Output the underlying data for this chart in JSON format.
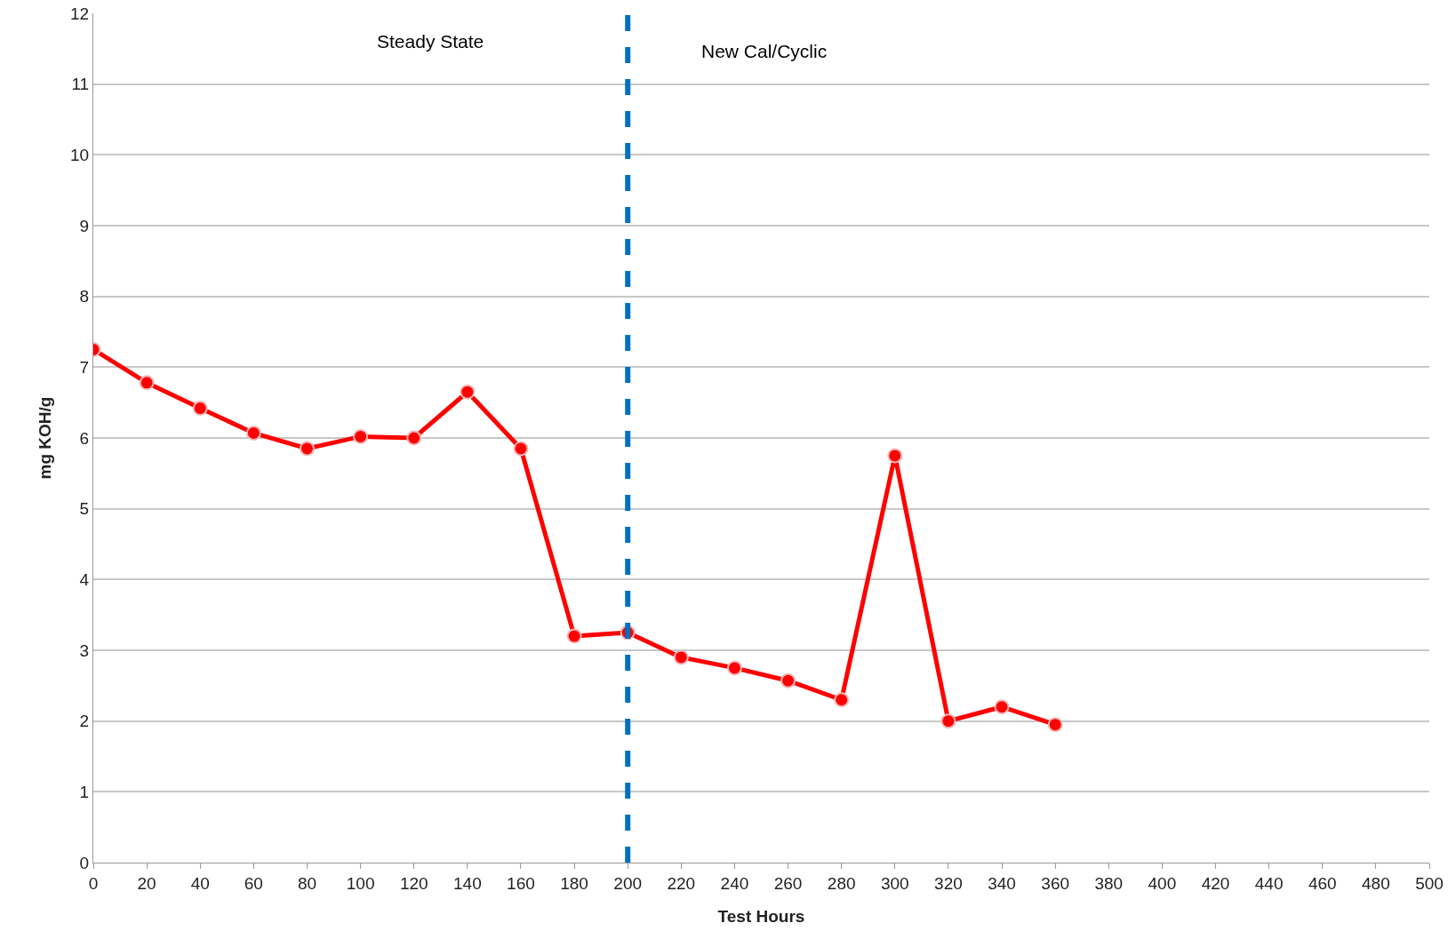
{
  "chart_data": {
    "type": "line",
    "xlabel": "Test Hours",
    "ylabel": "mg KOH/g",
    "x": [
      0,
      20,
      40,
      60,
      80,
      100,
      120,
      140,
      160,
      180,
      200,
      220,
      240,
      260,
      280,
      300,
      320,
      340,
      360
    ],
    "series": [
      {
        "color": "#ff0000",
        "values": [
          7.25,
          6.78,
          6.42,
          6.07,
          5.85,
          6.02,
          6.0,
          6.65,
          5.85,
          3.2,
          3.25,
          2.9,
          2.75,
          2.57,
          2.3,
          5.75,
          2.0,
          2.2,
          1.95
        ]
      }
    ],
    "xlim": [
      0,
      500
    ],
    "xticks": [
      0,
      20,
      40,
      60,
      80,
      100,
      120,
      140,
      160,
      180,
      200,
      220,
      240,
      260,
      280,
      300,
      320,
      340,
      360,
      380,
      400,
      420,
      440,
      460,
      480,
      500
    ],
    "ylim": [
      0,
      12
    ],
    "yticks": [
      0,
      1,
      2,
      3,
      4,
      5,
      6,
      7,
      8,
      9,
      10,
      11,
      12
    ],
    "grid": "y",
    "marker": "circle",
    "line_style": "solid",
    "ref_lines": [
      {
        "axis": "x",
        "value": 200,
        "color": "#0070c0",
        "line_style": "dashed"
      }
    ],
    "annotations": [
      "Steady State",
      "New Cal/Cyclic"
    ]
  }
}
